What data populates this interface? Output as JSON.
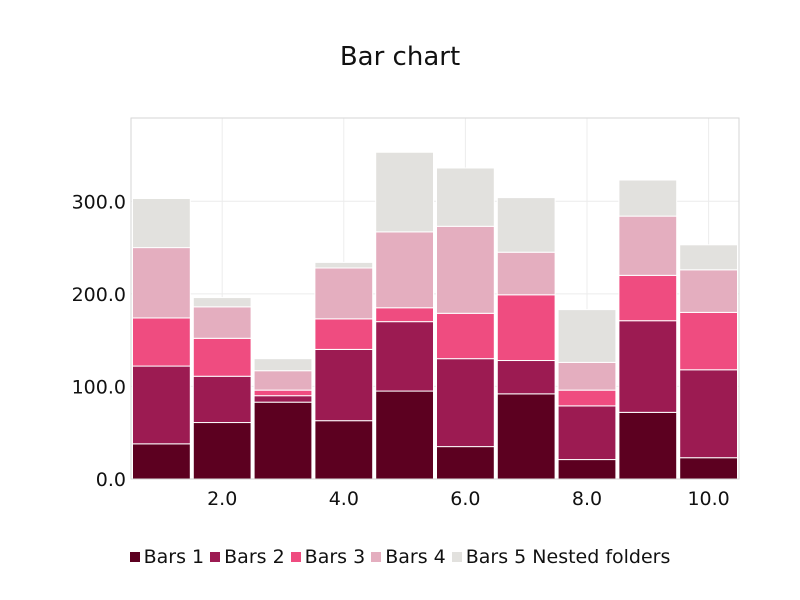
{
  "chart_data": {
    "type": "bar",
    "stacked": true,
    "title": "Bar chart",
    "x": [
      1,
      2,
      3,
      4,
      5,
      6,
      7,
      8,
      9,
      10
    ],
    "xticks": [
      "2.0",
      "4.0",
      "6.0",
      "8.0",
      "10.0"
    ],
    "xtick_values": [
      2,
      4,
      6,
      8,
      10
    ],
    "yticks": [
      "0.0",
      "100.0",
      "200.0",
      "300.0"
    ],
    "ytick_values": [
      0,
      100,
      200,
      300
    ],
    "ylim": [
      0,
      390
    ],
    "xlim": [
      0.5,
      10.5
    ],
    "grid": true,
    "legend_position": "bottom",
    "series": [
      {
        "name": "Bars 1",
        "color": "#5c0020",
        "values": [
          38,
          61,
          83,
          63,
          95,
          35,
          92,
          21,
          72,
          23
        ]
      },
      {
        "name": "Bars 2",
        "color": "#9c1b52",
        "values": [
          84,
          50,
          7,
          77,
          75,
          95,
          36,
          58,
          99,
          95
        ]
      },
      {
        "name": "Bars 3",
        "color": "#ef4c80",
        "values": [
          52,
          41,
          6,
          33,
          15,
          49,
          71,
          17,
          49,
          62
        ]
      },
      {
        "name": "Bars 4",
        "color": "#e4aebf",
        "values": [
          76,
          34,
          21,
          55,
          82,
          94,
          46,
          30,
          64,
          46
        ]
      },
      {
        "name": "Bars 5 Nested folders",
        "color": "#e2e1de",
        "values": [
          53,
          10,
          13,
          6,
          86,
          63,
          59,
          57,
          39,
          27
        ]
      }
    ]
  }
}
